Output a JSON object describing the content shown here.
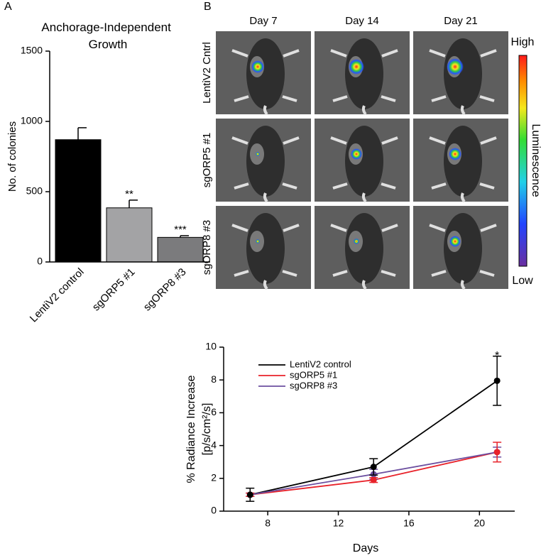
{
  "panel_labels": [
    "A",
    "B"
  ],
  "image_grid": {
    "columns": [
      "Day 7",
      "Day 14",
      "Day 21"
    ],
    "rows": [
      "LentiV2 Cntrl",
      "sgORP5 #1",
      "sgORP8 #3"
    ],
    "colorbar": {
      "title": "Luminescence",
      "high": "High",
      "low": "Low"
    }
  },
  "chart_data": [
    {
      "type": "bar",
      "title": "Anchorage-Independent Growth",
      "ylabel": "No. of colonies",
      "categories": [
        "LentiV2 control",
        "sgORP5 #1",
        "sgORP8 #3"
      ],
      "values": [
        870,
        385,
        175
      ],
      "errors": [
        85,
        55,
        12
      ],
      "colors": [
        "#000000",
        "#a3a3a5",
        "#7b7b7d"
      ],
      "significance": [
        null,
        "**",
        "***"
      ],
      "ylim": [
        0,
        1500
      ],
      "yticks": [
        0,
        500,
        1000,
        1500
      ]
    },
    {
      "type": "line",
      "xlabel": "Days",
      "ylabel": [
        "% Radiance Increase",
        "[p/s/cm²/s]"
      ],
      "x": [
        7,
        14,
        21
      ],
      "series": [
        {
          "name": "LentiV2 control",
          "color": "#000000",
          "values": [
            1.0,
            2.7,
            7.95
          ],
          "errors": [
            0.4,
            0.5,
            1.5
          ]
        },
        {
          "name": "sgORP5 #1",
          "color": "#e8222a",
          "values": [
            1.0,
            1.9,
            3.6
          ],
          "errors": [
            0.1,
            0.15,
            0.6
          ]
        },
        {
          "name": "sgORP8 #3",
          "color": "#6c4fa0",
          "values": [
            1.0,
            2.25,
            3.6
          ],
          "errors": [
            0.1,
            0.3,
            0.3
          ]
        }
      ],
      "annotations": [
        {
          "text": "*",
          "x": 21,
          "y": 9.45
        }
      ],
      "xlim": [
        5.5,
        22
      ],
      "xticks": [
        8,
        12,
        16,
        20
      ],
      "ylim": [
        0,
        10
      ],
      "yticks": [
        0,
        2,
        4,
        6,
        8,
        10
      ],
      "legend": "upper-left"
    }
  ]
}
